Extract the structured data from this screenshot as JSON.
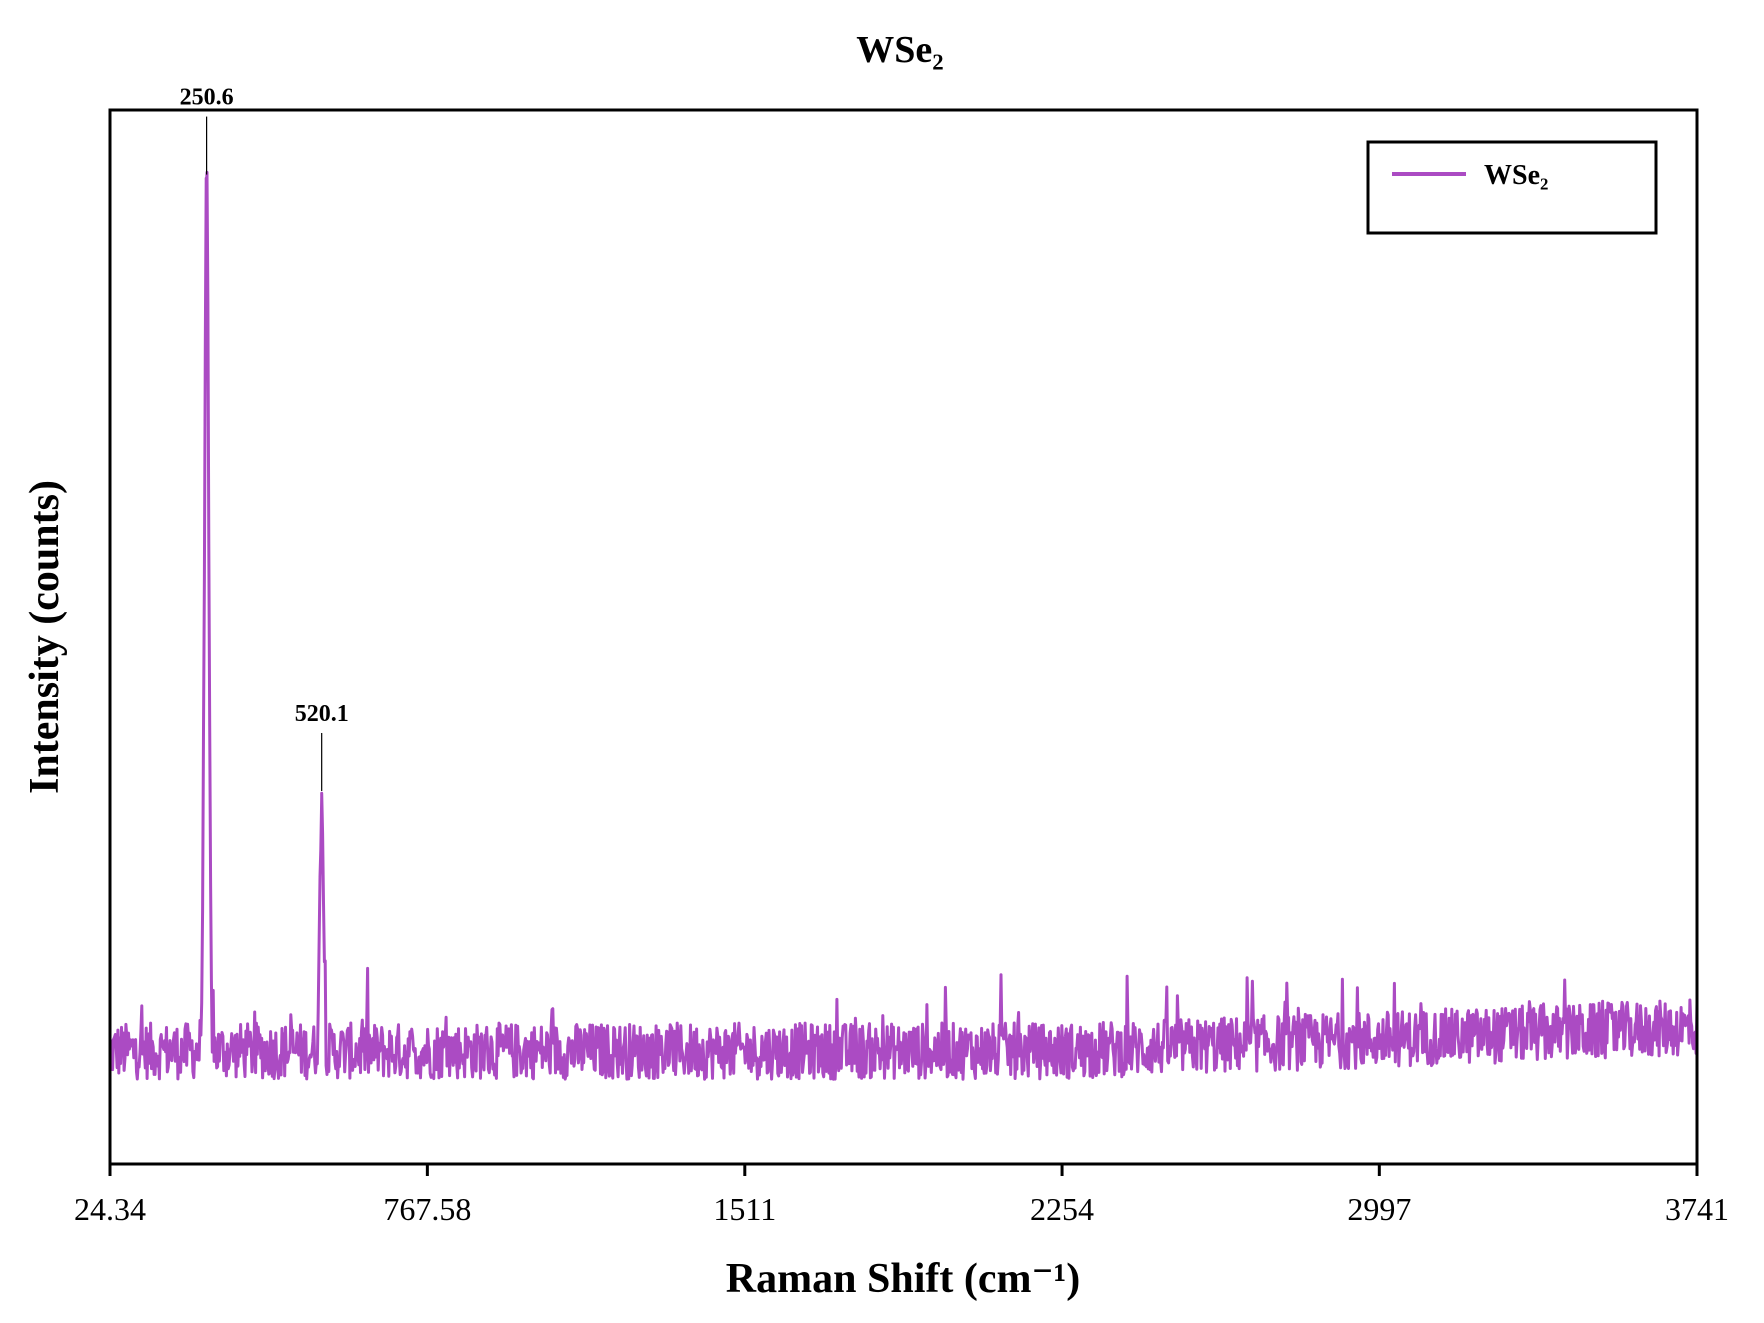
{
  "chart_data": {
    "type": "line",
    "title": "WSe₂",
    "xlabel": "Raman Shift (cm⁻¹)",
    "ylabel": "Intensity (counts)",
    "xlim": [
      24.34,
      3741
    ],
    "ylim": [
      -0.12,
      1.0
    ],
    "x_tick_labels": [
      "24.34",
      "767.58",
      "1511",
      "2254",
      "2997",
      "3741"
    ],
    "x_ticks": [
      24.34,
      767.58,
      1511,
      2254,
      2997,
      3741
    ],
    "y_tick_labels_shown": false,
    "grid": false,
    "legend_position": "top-right",
    "series": [
      {
        "name": "WSe₂",
        "color": "#ab4bc3",
        "baseline": 0.0,
        "noise_amplitude": 0.03,
        "peaks": [
          {
            "x": 250.6,
            "y": 0.925
          },
          {
            "x": 520.1,
            "y": 0.27
          }
        ]
      }
    ],
    "annotations": [
      {
        "x": 250.6,
        "y": 0.925,
        "text": "250.6"
      },
      {
        "x": 520.1,
        "y": 0.27,
        "text": "520.1"
      }
    ]
  }
}
